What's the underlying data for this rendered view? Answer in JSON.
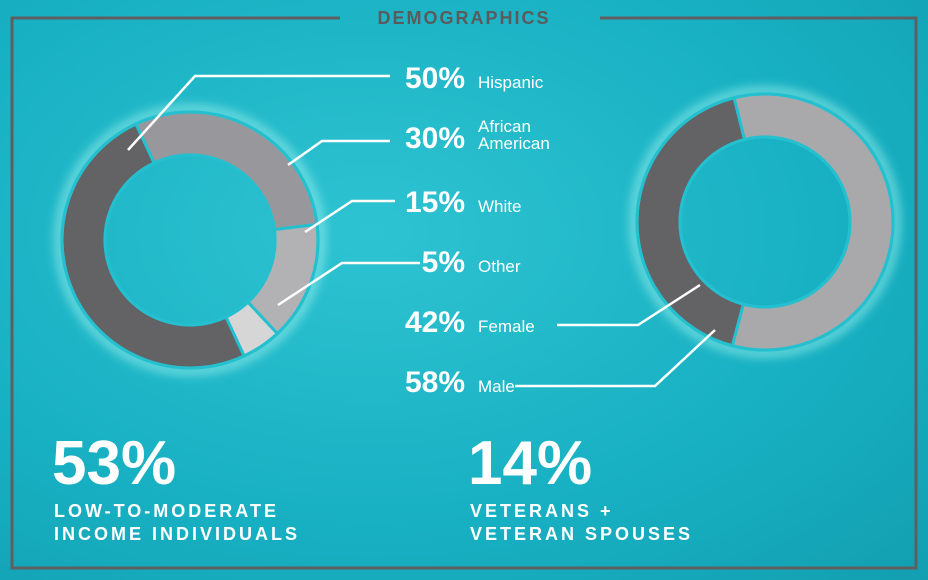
{
  "title": "DEMOGRAPHICS",
  "chart_data": [
    {
      "type": "pie",
      "donut": true,
      "categories": [
        "Hispanic",
        "African American",
        "White",
        "Other"
      ],
      "values": [
        50,
        30,
        15,
        5
      ],
      "value_labels": [
        "50%",
        "30%",
        "15%",
        "5%"
      ],
      "colors": [
        "#636366",
        "#98989c",
        "#b2b2b5",
        "#d6d6d6"
      ]
    },
    {
      "type": "pie",
      "donut": true,
      "categories": [
        "Female",
        "Male"
      ],
      "values": [
        42,
        58
      ],
      "value_labels": [
        "42%",
        "58%"
      ],
      "colors": [
        "#636366",
        "#a9a9ac"
      ]
    }
  ],
  "stats": [
    {
      "value": "53%",
      "label_lines": [
        "LOW-TO-MODERATE",
        "INCOME INDIVIDUALS"
      ]
    },
    {
      "value": "14%",
      "label_lines": [
        "VETERANS +",
        "VETERAN SPOUSES"
      ]
    }
  ]
}
